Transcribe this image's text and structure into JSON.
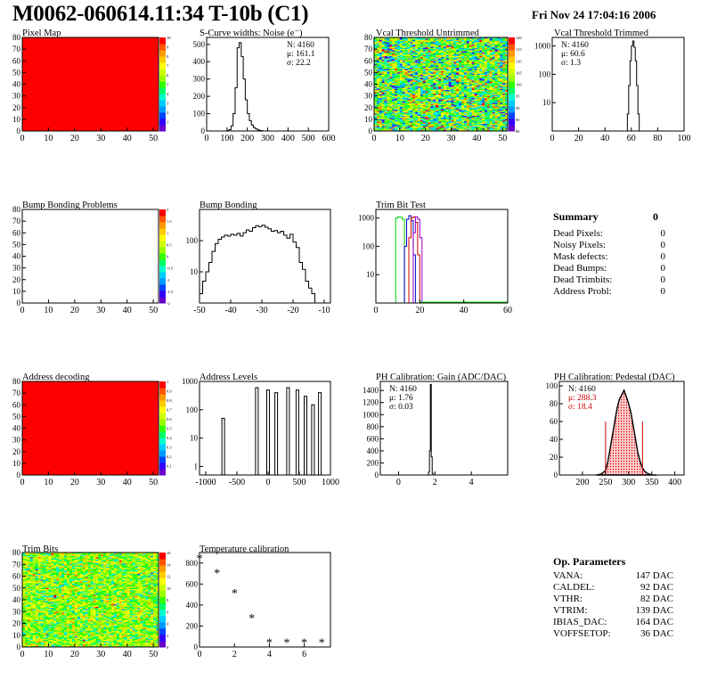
{
  "header": {
    "title": "M0062-060614.11:34 T-10b (C1)",
    "timestamp": "Fri Nov 24 17:04:16 2006"
  },
  "chart_data": [
    {
      "id": "pixel_map",
      "type": "heatmap",
      "title": "Pixel Map",
      "xlim": [
        0,
        52
      ],
      "ylim": [
        0,
        80
      ],
      "x_ticks": [
        0,
        10,
        20,
        30,
        40,
        50
      ],
      "y_ticks": [
        0,
        10,
        20,
        30,
        40,
        50,
        60,
        70,
        80
      ],
      "fill_color": "#ff0000",
      "uniform_value": 10,
      "palette_ticks": [
        1,
        2,
        3,
        4,
        5,
        6,
        7,
        8,
        9,
        10
      ]
    },
    {
      "id": "scurve",
      "type": "line",
      "title": "S-Curve widths: Noise (e⁻)",
      "xlim": [
        0,
        600
      ],
      "ylim": [
        0,
        540
      ],
      "x_ticks": [
        0,
        100,
        200,
        300,
        400,
        500,
        600
      ],
      "y_ticks": [
        0,
        100,
        200,
        300,
        400,
        500
      ],
      "stats": [
        "N: 4160",
        "μ: 161.1",
        "σ: 22.2"
      ],
      "x": [
        90,
        100,
        110,
        120,
        130,
        140,
        150,
        160,
        170,
        180,
        190,
        200,
        210,
        220,
        230,
        240,
        250,
        260,
        270,
        280
      ],
      "y": [
        0,
        2,
        8,
        30,
        100,
        250,
        480,
        510,
        430,
        300,
        180,
        100,
        60,
        35,
        20,
        12,
        6,
        3,
        1,
        0
      ]
    },
    {
      "id": "vcal_untrimmed",
      "type": "heatmap",
      "title": "Vcal Threshold Untrimmed",
      "xlim": [
        0,
        52
      ],
      "ylim": [
        0,
        80
      ],
      "x_ticks": [
        0,
        10,
        20,
        30,
        40,
        50
      ],
      "y_ticks": [
        0,
        10,
        20,
        30,
        40,
        50,
        60,
        70,
        80
      ],
      "palette_ticks": [
        80,
        85,
        90,
        95,
        100,
        105,
        110,
        115,
        120
      ],
      "value_mean": 100,
      "value_sigma": 8
    },
    {
      "id": "vcal_trimmed",
      "type": "line",
      "title": "Vcal Threshold Trimmed",
      "log_y": true,
      "xlim": [
        0,
        100
      ],
      "ylim": [
        1,
        2000
      ],
      "x_ticks": [
        0,
        20,
        40,
        60,
        80,
        100
      ],
      "y_ticks": [
        10,
        100,
        1000
      ],
      "stats": [
        "N: 4160",
        "μ: 60.6",
        "σ: 1.3"
      ],
      "x": [
        56,
        57,
        58,
        59,
        60,
        61,
        62,
        63,
        64,
        65,
        66
      ],
      "y": [
        1,
        4,
        40,
        300,
        1000,
        1500,
        900,
        300,
        40,
        4,
        1
      ]
    },
    {
      "id": "bump_problems",
      "type": "heatmap",
      "title": "Bump Bonding Problems",
      "xlim": [
        0,
        52
      ],
      "ylim": [
        0,
        80
      ],
      "x_ticks": [
        0,
        10,
        20,
        30,
        40,
        50
      ],
      "y_ticks": [
        0,
        10,
        20,
        30,
        40,
        50,
        60,
        70,
        80
      ],
      "palette_ticks": [
        -2,
        -1.5,
        -1,
        -0.5,
        0,
        0.5,
        1,
        1.5,
        2
      ],
      "fill_color": "#ffffff"
    },
    {
      "id": "bump_bonding",
      "type": "line",
      "title": "Bump Bonding",
      "log_y": true,
      "xlim": [
        -50,
        -8
      ],
      "ylim": [
        1,
        1000
      ],
      "x_ticks": [
        -50,
        -40,
        -30,
        -20,
        -10
      ],
      "y_ticks": [
        10,
        100
      ],
      "x": [
        -50,
        -49,
        -48,
        -47,
        -46,
        -45,
        -44,
        -43,
        -42,
        -41,
        -40,
        -39,
        -38,
        -37,
        -36,
        -35,
        -34,
        -33,
        -32,
        -31,
        -30,
        -29,
        -28,
        -27,
        -26,
        -25,
        -24,
        -23,
        -22,
        -21,
        -20,
        -19,
        -18,
        -17,
        -16,
        -15,
        -14,
        -13
      ],
      "y": [
        2,
        5,
        10,
        20,
        45,
        80,
        110,
        130,
        150,
        140,
        160,
        150,
        170,
        140,
        180,
        220,
        200,
        260,
        300,
        280,
        310,
        270,
        240,
        200,
        210,
        180,
        200,
        150,
        120,
        160,
        90,
        60,
        20,
        12,
        5,
        3,
        2,
        1
      ]
    },
    {
      "id": "trim_bit_test",
      "type": "line",
      "title": "Trim Bit Test",
      "log_y": true,
      "xlim": [
        0,
        60
      ],
      "ylim": [
        1,
        2000
      ],
      "x_ticks": [
        0,
        20,
        40,
        60
      ],
      "y_ticks": [
        10,
        100,
        1000
      ],
      "series": [
        {
          "color": "#00cc00",
          "x": [
            8,
            9,
            10,
            11,
            12,
            13,
            14
          ],
          "y": [
            1,
            1000,
            1100,
            1050,
            900,
            1,
            1
          ]
        },
        {
          "color": "#0000cc",
          "x": [
            12,
            13,
            14,
            15,
            16,
            17,
            18
          ],
          "y": [
            1,
            100,
            900,
            1200,
            800,
            50,
            1
          ]
        },
        {
          "color": "#cc0000",
          "x": [
            14,
            15,
            16,
            17,
            18,
            19,
            20
          ],
          "y": [
            1,
            200,
            1000,
            1100,
            700,
            50,
            1
          ]
        },
        {
          "color": "#9900cc",
          "x": [
            16,
            17,
            18,
            19,
            20,
            21
          ],
          "y": [
            1,
            300,
            1100,
            900,
            200,
            1
          ]
        }
      ]
    },
    {
      "id": "address_decoding",
      "type": "heatmap",
      "title": "Address decoding",
      "xlim": [
        0,
        52
      ],
      "ylim": [
        0,
        80
      ],
      "x_ticks": [
        0,
        10,
        20,
        30,
        40,
        50
      ],
      "y_ticks": [
        0,
        10,
        20,
        30,
        40,
        50,
        60,
        70,
        80
      ],
      "fill_color": "#ff0000",
      "palette_ticks": [
        0.1,
        0.2,
        0.3,
        0.4,
        0.5,
        0.6,
        0.7,
        0.8,
        0.9,
        1
      ]
    },
    {
      "id": "address_levels",
      "type": "line",
      "title": "Address Levels",
      "log_y": true,
      "xlim": [
        -1100,
        1000
      ],
      "ylim": [
        0.5,
        1000
      ],
      "x_ticks": [
        -1000,
        -500,
        0,
        500,
        1000
      ],
      "y_ticks": [
        1,
        10,
        100,
        1000
      ],
      "peaks": [
        -720,
        -180,
        0,
        130,
        320,
        470,
        600,
        720,
        830
      ],
      "peak_heights": [
        50,
        600,
        500,
        400,
        600,
        500,
        300,
        150,
        400
      ]
    },
    {
      "id": "ph_gain",
      "type": "line",
      "title": "PH Calibration: Gain (ADC/DAC)",
      "xlim": [
        -1,
        6
      ],
      "ylim": [
        0,
        1550
      ],
      "x_ticks": [
        0,
        2,
        4
      ],
      "y_ticks": [
        0,
        200,
        400,
        600,
        800,
        1000,
        1200,
        1400
      ],
      "stats": [
        "N: 4160",
        "μ: 1.76",
        "σ: 0.03"
      ],
      "x": [
        1.6,
        1.65,
        1.7,
        1.75,
        1.8,
        1.85,
        1.9
      ],
      "y": [
        0,
        50,
        400,
        1500,
        300,
        30,
        0
      ]
    },
    {
      "id": "ph_pedestal",
      "type": "area",
      "title": "PH Calibration: Pedestal (DAC)",
      "xlim": [
        150,
        420
      ],
      "ylim": [
        0,
        105
      ],
      "x_ticks": [
        200,
        250,
        300,
        350,
        400
      ],
      "y_ticks": [
        0,
        20,
        40,
        60,
        80,
        100
      ],
      "stats": [
        "N: 4160",
        "μ: 288.3",
        "σ: 18.4"
      ],
      "stat_colors": [
        "#000000",
        "#cc0000",
        "#cc0000"
      ],
      "cut_lines": [
        250,
        330
      ],
      "x": [
        230,
        240,
        250,
        255,
        260,
        265,
        270,
        275,
        280,
        285,
        290,
        295,
        300,
        305,
        310,
        315,
        320,
        325,
        330,
        335,
        340,
        345,
        350,
        360
      ],
      "y": [
        0,
        1,
        5,
        15,
        30,
        45,
        60,
        75,
        85,
        90,
        95,
        88,
        80,
        70,
        55,
        40,
        25,
        15,
        8,
        4,
        2,
        1,
        0,
        0
      ]
    },
    {
      "id": "trim_bits",
      "type": "heatmap",
      "title": "Trim Bits",
      "xlim": [
        0,
        52
      ],
      "ylim": [
        0,
        80
      ],
      "x_ticks": [
        0,
        10,
        20,
        30,
        40,
        50
      ],
      "y_ticks": [
        0,
        10,
        20,
        30,
        40,
        50,
        60,
        70,
        80
      ],
      "palette_ticks": [
        0,
        2,
        4,
        6,
        8,
        10,
        12,
        14,
        16
      ],
      "value_mean": 9,
      "value_sigma": 2
    },
    {
      "id": "temperature",
      "type": "scatter",
      "title": "Temperature calibration",
      "xlim": [
        0,
        7.5
      ],
      "ylim": [
        0,
        900
      ],
      "x_ticks": [
        0,
        2,
        4,
        6
      ],
      "y_ticks": [
        0,
        200,
        400,
        600,
        800
      ],
      "x": [
        0,
        1,
        2,
        3,
        4,
        5,
        6,
        7
      ],
      "y": [
        840,
        700,
        510,
        270,
        40,
        40,
        40,
        40
      ]
    }
  ],
  "summary": {
    "title": "Summary",
    "total": "0",
    "rows": [
      {
        "label": "Dead Pixels:",
        "value": "0"
      },
      {
        "label": "Noisy Pixels:",
        "value": "0"
      },
      {
        "label": "Mask defects:",
        "value": "0"
      },
      {
        "label": "Dead Bumps:",
        "value": "0"
      },
      {
        "label": "Dead Trimbits:",
        "value": "0"
      },
      {
        "label": "Address Probl:",
        "value": "0"
      }
    ]
  },
  "op_params": {
    "title": "Op. Parameters",
    "rows": [
      {
        "label": "VANA:",
        "value": "147 DAC"
      },
      {
        "label": "CALDEL:",
        "value": "92 DAC"
      },
      {
        "label": "VTHR:",
        "value": "82 DAC"
      },
      {
        "label": "VTRIM:",
        "value": "139 DAC"
      },
      {
        "label": "IBIAS_DAC:",
        "value": "164 DAC"
      },
      {
        "label": "VOFFSETOP:",
        "value": "36 DAC"
      }
    ]
  }
}
